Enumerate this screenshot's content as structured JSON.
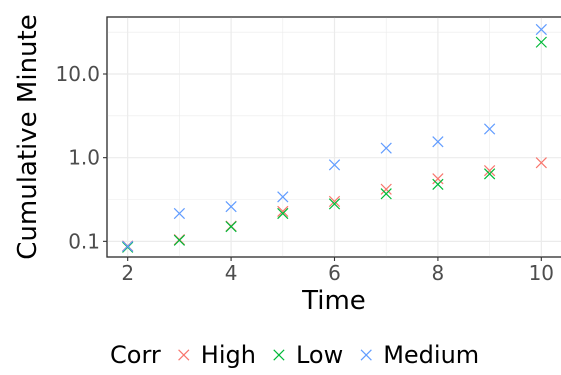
{
  "chart_data": {
    "type": "scatter",
    "xlabel": "Time",
    "ylabel": "Cumulative Minute",
    "x_ticks": [
      2,
      4,
      6,
      8,
      10
    ],
    "y_ticks": [
      0.1,
      1.0,
      10.0
    ],
    "y_tick_labels": [
      "0.1",
      "1.0",
      "10.0"
    ],
    "x_range": [
      1.6,
      10.4
    ],
    "y_range": [
      0.065,
      48
    ],
    "y_scale": "log",
    "grid": true,
    "marker": "x",
    "legend": {
      "title": "Corr",
      "position": "bottom"
    },
    "series": [
      {
        "name": "High",
        "color": "#F8766D",
        "x": [
          2,
          3,
          4,
          5,
          6,
          7,
          8,
          9,
          10
        ],
        "y": [
          0.088,
          0.105,
          0.152,
          0.228,
          0.3,
          0.42,
          0.56,
          0.7,
          0.87
        ]
      },
      {
        "name": "Low",
        "color": "#00BA38",
        "x": [
          2,
          3,
          4,
          5,
          6,
          7,
          8,
          9,
          10
        ],
        "y": [
          0.085,
          0.103,
          0.15,
          0.215,
          0.28,
          0.37,
          0.48,
          0.64,
          24.0
        ]
      },
      {
        "name": "Medium",
        "color": "#619CFF",
        "x": [
          2,
          3,
          4,
          5,
          6,
          7,
          8,
          9,
          10
        ],
        "y": [
          0.087,
          0.215,
          0.26,
          0.34,
          0.82,
          1.3,
          1.55,
          2.2,
          34.0
        ]
      }
    ]
  }
}
